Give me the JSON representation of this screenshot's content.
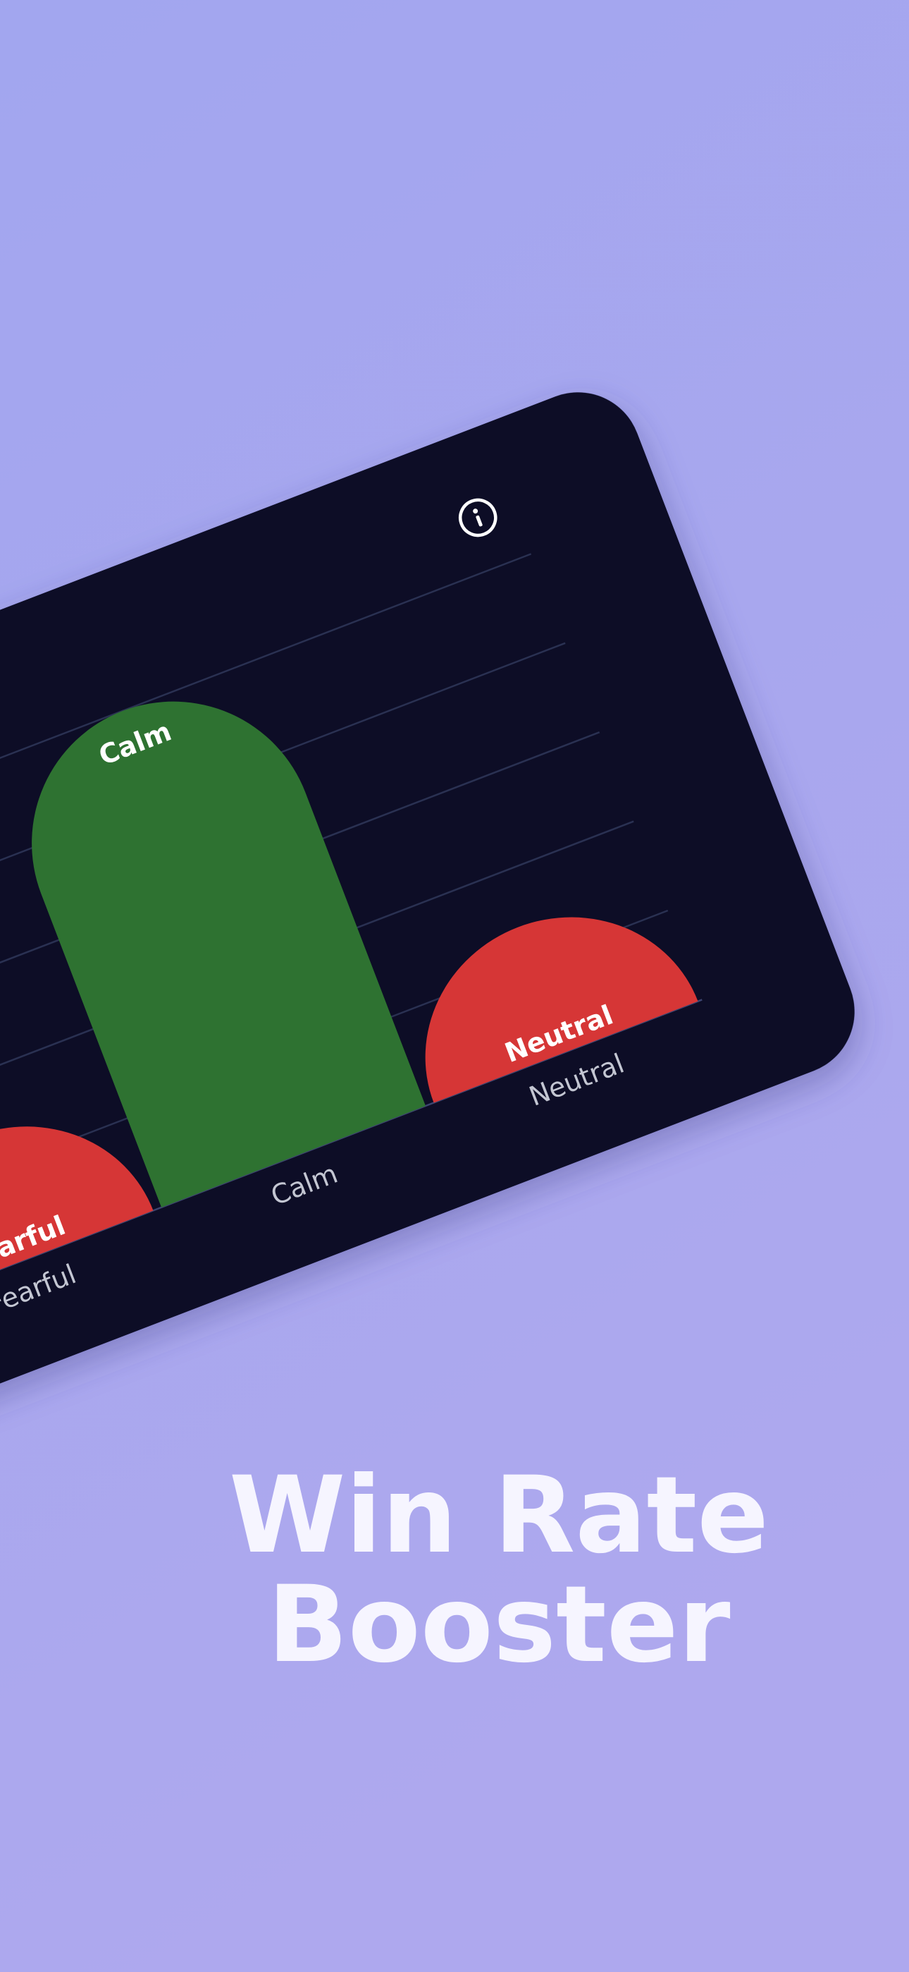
{
  "chart_data": {
    "type": "bar",
    "categories": [
      "Fearful",
      "Calm",
      "Neutral"
    ],
    "values": [
      1.4,
      5,
      1.4
    ],
    "colors": [
      "#d63636",
      "#2e7231",
      "#d63636"
    ],
    "ylim": [
      0,
      5
    ],
    "yticks": [
      0,
      1,
      2,
      3,
      4,
      5
    ],
    "grid": true
  },
  "headline": [
    "Win Rate",
    "Booster"
  ]
}
